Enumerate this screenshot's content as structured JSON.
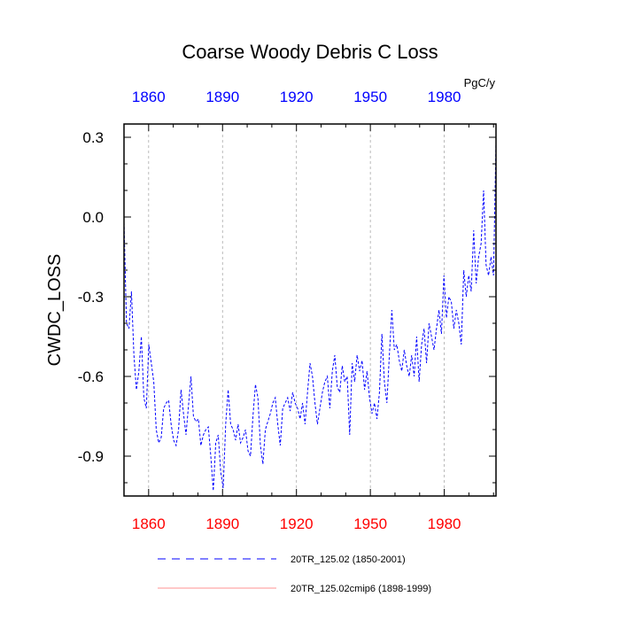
{
  "chart_data": {
    "type": "line",
    "title": "Coarse Woody Debris C Loss",
    "units": "PgC/y",
    "ylabel": "CWDC_LOSS",
    "xlabel": "",
    "xlim": [
      1850,
      2001
    ],
    "ylim": [
      -1.05,
      0.35
    ],
    "xticks": [
      1860,
      1890,
      1920,
      1950,
      1980
    ],
    "xtick_labels": [
      "1860",
      "1890",
      "1920",
      "1950",
      "1980"
    ],
    "yticks": [
      0.3,
      0.0,
      -0.3,
      -0.6,
      -0.9
    ],
    "ytick_labels": [
      "0.3",
      "0.0",
      "-0.3",
      "-0.6",
      "-0.9"
    ],
    "top_axis_color": "#0000ff",
    "bottom_axis_color": "#ff0000",
    "grid": "vertical dashed at major x ticks",
    "legend_position": "bottom",
    "series": [
      {
        "name": "20TR_125.02 (1850-2001)",
        "color": "#0000ff",
        "style": "dashed",
        "x_start": 1850,
        "x_end": 2001,
        "values": [
          -0.02,
          -0.4,
          -0.42,
          -0.28,
          -0.52,
          -0.65,
          -0.58,
          -0.45,
          -0.68,
          -0.72,
          -0.48,
          -0.55,
          -0.62,
          -0.8,
          -0.85,
          -0.83,
          -0.72,
          -0.7,
          -0.69,
          -0.78,
          -0.84,
          -0.86,
          -0.8,
          -0.65,
          -0.74,
          -0.82,
          -0.71,
          -0.6,
          -0.75,
          -0.77,
          -0.76,
          -0.86,
          -0.82,
          -0.8,
          -0.79,
          -0.9,
          -1.03,
          -0.85,
          -0.82,
          -0.96,
          -1.02,
          -0.78,
          -0.65,
          -0.78,
          -0.8,
          -0.84,
          -0.78,
          -0.85,
          -0.83,
          -0.8,
          -0.88,
          -0.9,
          -0.75,
          -0.63,
          -0.68,
          -0.86,
          -0.93,
          -0.8,
          -0.77,
          -0.74,
          -0.7,
          -0.68,
          -0.78,
          -0.86,
          -0.72,
          -0.7,
          -0.68,
          -0.73,
          -0.66,
          -0.7,
          -0.72,
          -0.76,
          -0.7,
          -0.78,
          -0.66,
          -0.55,
          -0.6,
          -0.7,
          -0.78,
          -0.72,
          -0.66,
          -0.62,
          -0.6,
          -0.72,
          -0.58,
          -0.52,
          -0.64,
          -0.66,
          -0.56,
          -0.62,
          -0.6,
          -0.82,
          -0.55,
          -0.62,
          -0.52,
          -0.58,
          -0.54,
          -0.65,
          -0.58,
          -0.68,
          -0.74,
          -0.7,
          -0.76,
          -0.66,
          -0.44,
          -0.62,
          -0.7,
          -0.52,
          -0.35,
          -0.5,
          -0.48,
          -0.54,
          -0.58,
          -0.5,
          -0.56,
          -0.6,
          -0.52,
          -0.6,
          -0.45,
          -0.62,
          -0.48,
          -0.42,
          -0.55,
          -0.4,
          -0.45,
          -0.5,
          -0.42,
          -0.35,
          -0.44,
          -0.22,
          -0.38,
          -0.3,
          -0.32,
          -0.42,
          -0.35,
          -0.4,
          -0.48,
          -0.2,
          -0.3,
          -0.22,
          -0.28,
          -0.05,
          -0.25,
          -0.15,
          -0.1,
          0.1,
          -0.18,
          -0.22,
          -0.15,
          -0.22,
          0.28
        ]
      },
      {
        "name": "20TR_125.02cmip6 (1898-1999)",
        "color": "#ff6b6b",
        "style": "solid",
        "x_start": 1898,
        "x_end": 1999,
        "values": []
      }
    ]
  }
}
